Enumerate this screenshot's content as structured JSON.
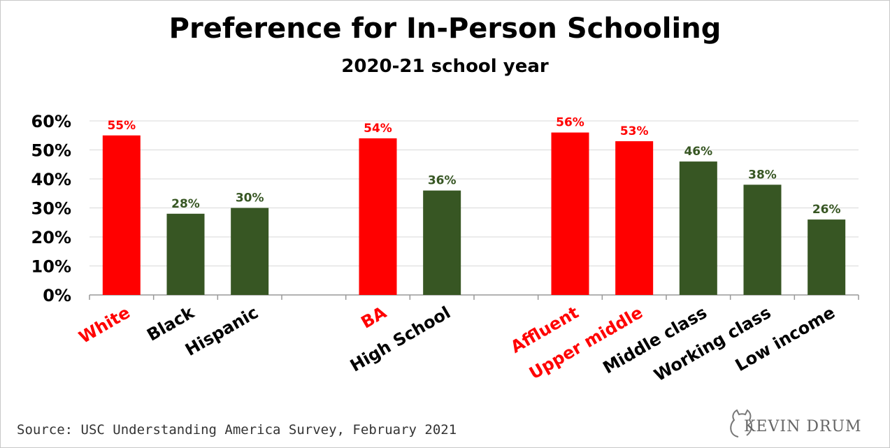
{
  "header": {
    "title": "Preference for In-Person Schooling",
    "subtitle": "2020-21 school year"
  },
  "footer": {
    "source": "Source: USC Understanding America Survey, February 2021",
    "logo_text": "KEVIN DRUM"
  },
  "colors": {
    "highlight": "#ff0000",
    "default_bar": "#375623",
    "default_label": "#375623",
    "category_dark": "#000000"
  },
  "chart_data": {
    "type": "bar",
    "title": "Preference for In-Person Schooling",
    "subtitle": "2020-21 school year",
    "ylim": [
      0,
      60
    ],
    "yticks": [
      "0%",
      "10%",
      "20%",
      "30%",
      "40%",
      "50%",
      "60%"
    ],
    "grid": true,
    "categories": [
      "White",
      "Black",
      "Hispanic",
      "",
      "BA",
      "High School",
      "",
      "Affluent",
      "Upper middle",
      "Middle class",
      "Working class",
      "Low income"
    ],
    "values": [
      55,
      28,
      30,
      null,
      54,
      36,
      null,
      56,
      53,
      46,
      38,
      26
    ],
    "value_labels": [
      "55%",
      "28%",
      "30%",
      "",
      "54%",
      "36%",
      "",
      "56%",
      "53%",
      "46%",
      "38%",
      "26%"
    ],
    "highlighted": [
      true,
      false,
      false,
      false,
      true,
      false,
      false,
      true,
      true,
      false,
      false,
      false
    ]
  }
}
